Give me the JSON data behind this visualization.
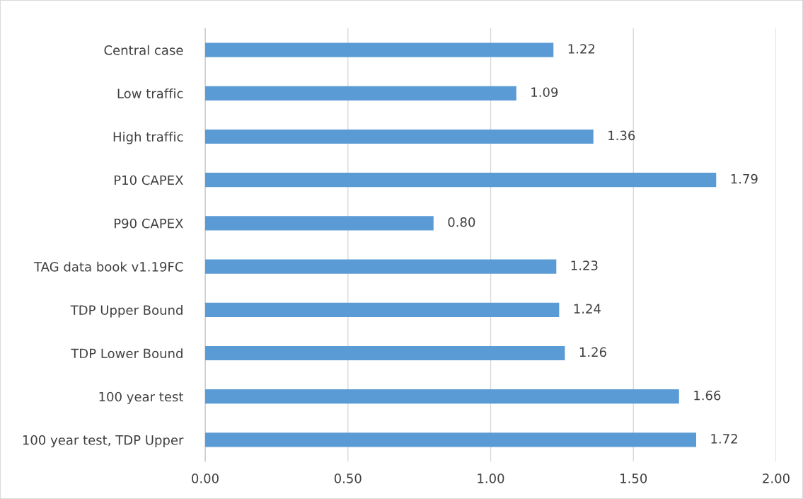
{
  "chart_data": {
    "type": "bar",
    "orientation": "horizontal",
    "categories": [
      "Central case",
      "Low traffic",
      "High traffic",
      "P10 CAPEX",
      "P90 CAPEX",
      "TAG data book v1.19FC",
      "TDP Upper Bound",
      "TDP Lower Bound",
      "100 year test",
      "100 year test, TDP Upper"
    ],
    "values": [
      1.22,
      1.09,
      1.36,
      1.79,
      0.8,
      1.23,
      1.24,
      1.26,
      1.66,
      1.72
    ],
    "value_labels": [
      "1.22",
      "1.09",
      "1.36",
      "1.79",
      "0.80",
      "1.23",
      "1.24",
      "1.26",
      "1.66",
      "1.72"
    ],
    "color": "#5b9bd5",
    "xlim": [
      0,
      2
    ],
    "xticks": [
      {
        "value": 0,
        "label": "0.00"
      },
      {
        "value": 0.5,
        "label": "0.50"
      },
      {
        "value": 1,
        "label": "1.00"
      },
      {
        "value": 1.5,
        "label": "1.50"
      },
      {
        "value": 2,
        "label": "2.00"
      }
    ],
    "grid": "x",
    "legend": false
  }
}
